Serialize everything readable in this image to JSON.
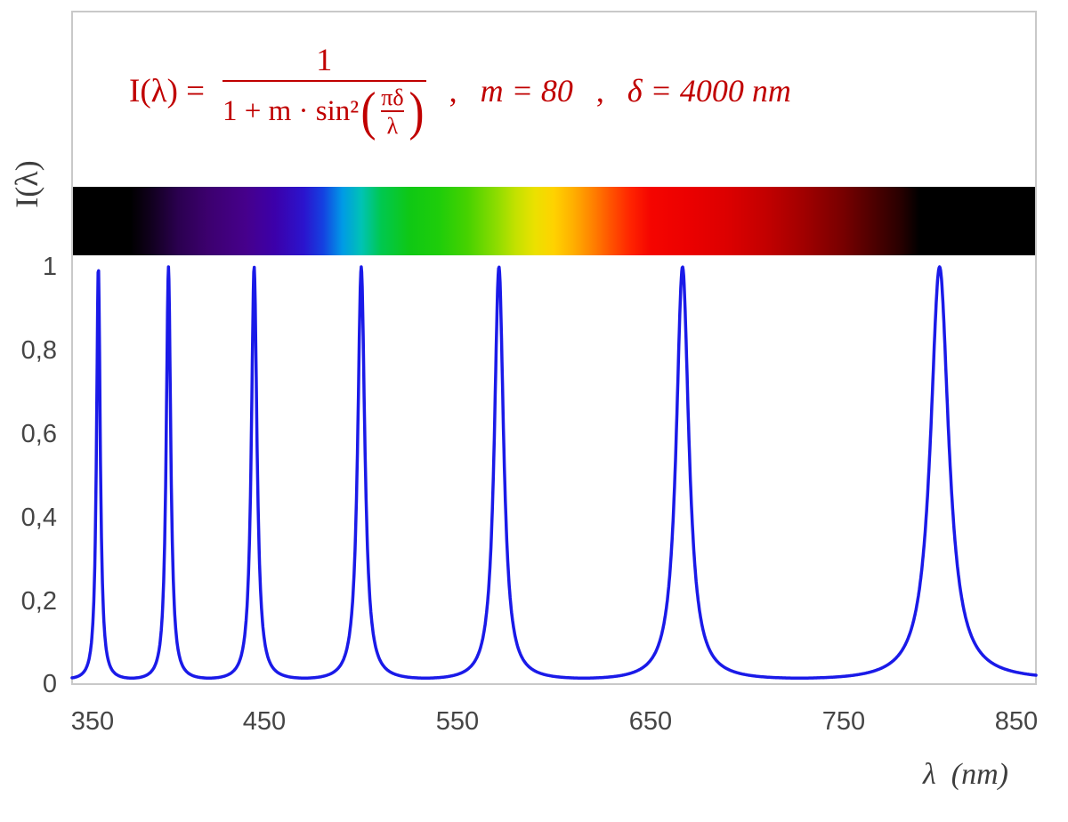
{
  "formula": {
    "color": "#c00000",
    "lhs": "I(λ) =",
    "numerator": "1",
    "denominator_text": "1 + m · sin²",
    "open_paren": "(",
    "inner_numerator": "πδ",
    "inner_denominator": "λ",
    "close_paren": ")",
    "comma1": ",",
    "param_m": "m = 80",
    "comma2": ",",
    "param_delta": "δ = 4000 nm"
  },
  "axes": {
    "y_axis_label": "I(λ)",
    "x_axis_label": "λ  (nm)",
    "text_color": "#454545",
    "y_ticks": [
      "1",
      "0,8",
      "0,6",
      "0,4",
      "0,2",
      "0"
    ],
    "x_ticks": [
      "350",
      "450",
      "550",
      "650",
      "750",
      "850"
    ]
  },
  "chart_data": {
    "type": "line",
    "title": "Airy transmission function I(λ) = 1 / (1 + m·sin²(πδ/λ)) with m = 80, δ = 4000 nm",
    "function": "I(lambda) = 1 / (1 + m * sin(pi*delta/lambda)^2)",
    "parameters": {
      "m": 80,
      "delta_nm": 4000
    },
    "xlabel": "λ (nm)",
    "ylabel": "I(λ)",
    "x_range_nm": [
      350,
      850
    ],
    "y_range": [
      0,
      1
    ],
    "x_ticks_nm": [
      350,
      450,
      550,
      650,
      750,
      850
    ],
    "y_ticks": [
      0,
      0.2,
      0.4,
      0.6,
      0.8,
      1
    ],
    "grid": false,
    "legend": false,
    "line_color": "#1a1ae8",
    "peaks": [
      {
        "order_n": 11,
        "lambda_nm": 363.64,
        "value": 1.0
      },
      {
        "order_n": 10,
        "lambda_nm": 400.0,
        "value": 1.0
      },
      {
        "order_n": 9,
        "lambda_nm": 444.44,
        "value": 1.0
      },
      {
        "order_n": 8,
        "lambda_nm": 500.0,
        "value": 1.0
      },
      {
        "order_n": 7,
        "lambda_nm": 571.43,
        "value": 1.0
      },
      {
        "order_n": 6,
        "lambda_nm": 666.67,
        "value": 1.0
      },
      {
        "order_n": 5,
        "lambda_nm": 800.0,
        "value": 1.0
      }
    ],
    "off_peak_minimum": 0.0123,
    "spectrum_bar": {
      "description": "visible-spectrum color strip aligned to the wavelength axis, black outside ~380-780 nm",
      "stops": [
        {
          "pos": 0,
          "color": "#000000"
        },
        {
          "pos": 6,
          "color": "#000000"
        },
        {
          "pos": 8,
          "color": "#10001c"
        },
        {
          "pos": 11,
          "color": "#2b0050"
        },
        {
          "pos": 14,
          "color": "#3c006e"
        },
        {
          "pos": 18,
          "color": "#46008c"
        },
        {
          "pos": 21,
          "color": "#3c00aa"
        },
        {
          "pos": 24,
          "color": "#2b14cd"
        },
        {
          "pos": 26,
          "color": "#1441e1"
        },
        {
          "pos": 28,
          "color": "#009ae6"
        },
        {
          "pos": 30,
          "color": "#00c3b4"
        },
        {
          "pos": 32,
          "color": "#00c850"
        },
        {
          "pos": 35,
          "color": "#0fc814"
        },
        {
          "pos": 38,
          "color": "#1ecd0a"
        },
        {
          "pos": 41,
          "color": "#46d200"
        },
        {
          "pos": 44,
          "color": "#8cdc00"
        },
        {
          "pos": 46,
          "color": "#c3e100"
        },
        {
          "pos": 48,
          "color": "#ebe100"
        },
        {
          "pos": 50,
          "color": "#ffd200"
        },
        {
          "pos": 52,
          "color": "#ffaf00"
        },
        {
          "pos": 54,
          "color": "#ff8200"
        },
        {
          "pos": 56,
          "color": "#ff5000"
        },
        {
          "pos": 58,
          "color": "#ff2300"
        },
        {
          "pos": 60,
          "color": "#f50500"
        },
        {
          "pos": 64,
          "color": "#eb0000"
        },
        {
          "pos": 68,
          "color": "#dc0000"
        },
        {
          "pos": 72,
          "color": "#c30000"
        },
        {
          "pos": 76,
          "color": "#a00000"
        },
        {
          "pos": 80,
          "color": "#780000"
        },
        {
          "pos": 83,
          "color": "#500000"
        },
        {
          "pos": 86,
          "color": "#280000"
        },
        {
          "pos": 88,
          "color": "#000000"
        },
        {
          "pos": 100,
          "color": "#000000"
        }
      ]
    }
  }
}
